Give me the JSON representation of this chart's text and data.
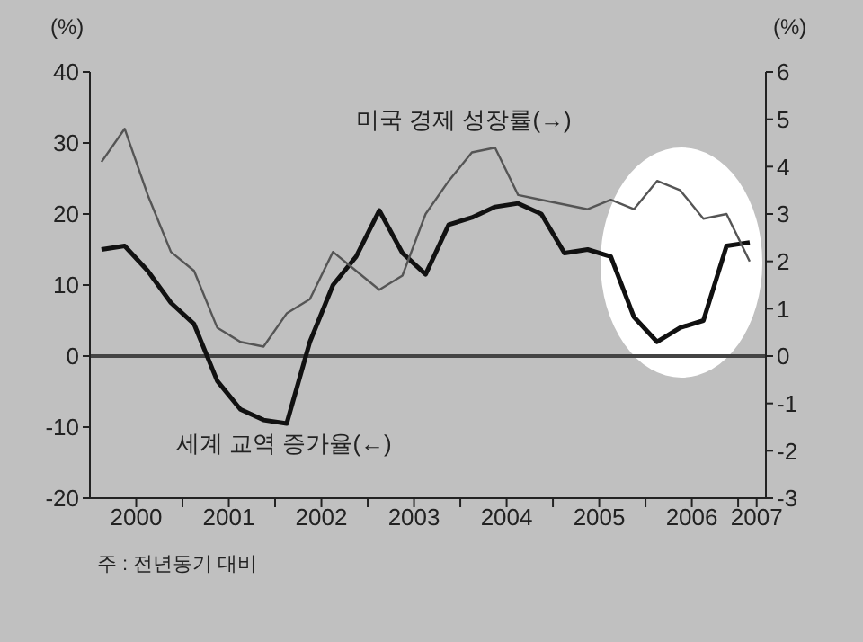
{
  "chart_data": {
    "type": "line",
    "x": [
      1999.625,
      1999.875,
      2000.125,
      2000.375,
      2000.625,
      2000.875,
      2001.125,
      2001.375,
      2001.625,
      2001.875,
      2002.125,
      2002.375,
      2002.625,
      2002.875,
      2003.125,
      2003.375,
      2003.625,
      2003.875,
      2004.125,
      2004.375,
      2004.625,
      2004.875,
      2005.125,
      2005.375,
      2005.625,
      2005.875,
      2006.125,
      2006.375,
      2006.625
    ],
    "series": [
      {
        "name": "세계 교역 증가율(←)",
        "color": "#111111",
        "values": [
          15,
          15.5,
          12,
          7.5,
          4.5,
          -3.5,
          -7.5,
          -9,
          -9.5,
          2,
          10,
          14,
          20.5,
          14.5,
          11.5,
          18.5,
          19.5,
          21,
          21.5,
          20,
          14.5,
          15,
          14,
          5.5,
          2,
          4,
          5,
          15.5,
          16
        ]
      },
      {
        "name": "미국 경제 성장률(→)",
        "color": "#555555",
        "axis": "y2",
        "values": [
          4.1,
          4.8,
          3.4,
          2.2,
          1.8,
          0.6,
          0.3,
          0.2,
          0.9,
          1.2,
          2.2,
          1.8,
          1.4,
          1.7,
          3.0,
          3.7,
          4.3,
          4.4,
          3.4,
          3.3,
          3.2,
          3.1,
          3.3,
          3.1,
          3.7,
          3.5,
          2.9,
          3.0,
          2.0
        ]
      }
    ],
    "xlim": [
      1999.5,
      2006.8
    ],
    "xticks": [
      2000,
      {
        "value": 2000.5,
        "label": null
      },
      2001,
      {
        "value": 2001.5,
        "label": null
      },
      2002,
      {
        "value": 2002.5,
        "label": null
      },
      2003,
      {
        "value": 2003.5,
        "label": null
      },
      2004,
      {
        "value": 2004.5,
        "label": null
      },
      2005,
      {
        "value": 2005.5,
        "label": null
      },
      2006,
      {
        "value": 2006.5,
        "label": null
      },
      {
        "value": 2006.7,
        "label": "2007"
      }
    ],
    "ylim": [
      -20,
      40
    ],
    "yticks": [
      -20,
      -10,
      0,
      10,
      20,
      30,
      40
    ],
    "y2lim": [
      -3,
      6
    ],
    "y2ticks": [
      -3,
      -2,
      -1,
      0,
      1,
      2,
      3,
      4,
      5,
      6
    ],
    "ylabel": "(%)",
    "y2label": "(%)",
    "ref_lines": [
      {
        "axis": "y",
        "value": 0,
        "color": "#444444"
      }
    ],
    "annotations": [
      "주 : 전년동기 대비"
    ],
    "grid": false,
    "legend": false,
    "marker": "none",
    "line_style": "solid"
  }
}
